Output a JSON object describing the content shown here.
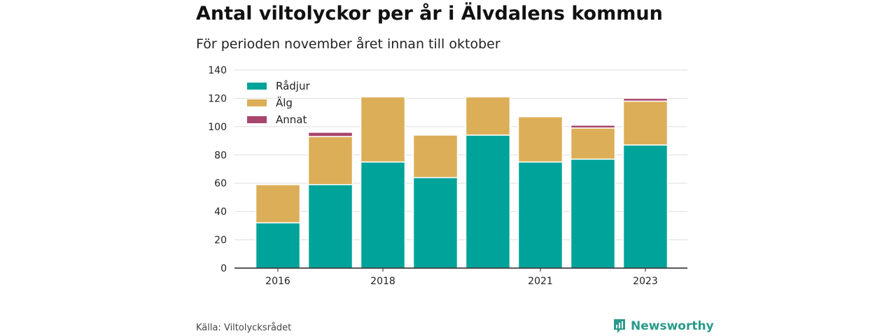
{
  "title": "Antal viltolyckor per år i Älvdalens kommun",
  "subtitle": "För perioden november året innan till oktober",
  "source": "Källa: Viltolycksrådet",
  "brand": {
    "name": "Newsworthy",
    "icon": "newsworthy-logo-icon",
    "color": "#2a9a8a"
  },
  "chart_data": {
    "type": "bar",
    "stacked": true,
    "categories": [
      "2016",
      "2017",
      "2018",
      "2019",
      "2020",
      "2021",
      "2022",
      "2023"
    ],
    "x_tick_labels": [
      "2016",
      "",
      "2018",
      "",
      "",
      "2021",
      "",
      "2023"
    ],
    "series": [
      {
        "name": "Rådjur",
        "color": "#00a39a",
        "values": [
          32,
          59,
          75,
          64,
          94,
          75,
          77,
          87
        ]
      },
      {
        "name": "Älg",
        "color": "#dcae58",
        "values": [
          27,
          34,
          46,
          30,
          27,
          32,
          22,
          31
        ]
      },
      {
        "name": "Annat",
        "color": "#a8456c",
        "values": [
          0,
          3,
          0,
          0,
          0,
          0,
          2,
          2
        ]
      }
    ],
    "ylim": [
      0,
      140
    ],
    "yticks": [
      0,
      20,
      40,
      60,
      80,
      100,
      120,
      140
    ],
    "grid": true,
    "legend_position": "top-left",
    "xlabel": "",
    "ylabel": ""
  }
}
